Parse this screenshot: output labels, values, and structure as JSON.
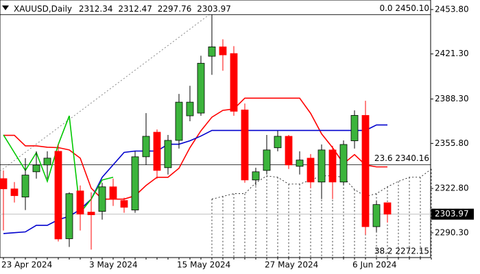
{
  "chart_data": {
    "type": "candlestick",
    "title": "XAUUSD,Daily",
    "categories": [
      "23 Apr 2024",
      null,
      null,
      null,
      null,
      null,
      null,
      null,
      "3 May 2024",
      null,
      null,
      null,
      null,
      null,
      null,
      null,
      "15 May 2024",
      null,
      null,
      null,
      null,
      null,
      null,
      null,
      "27 May 2024",
      null,
      null,
      null,
      null,
      null,
      null,
      null,
      "6 Jun 2024",
      null,
      null,
      null,
      null,
      null,
      null,
      null
    ],
    "open": [
      2330,
      2322.5,
      2316.5,
      2335,
      2340,
      2350,
      2286,
      2321,
      2305.5,
      2306,
      2324,
      2314,
      2307,
      2346,
      2364,
      2338,
      2358,
      2376,
      2378,
      2419.6,
      2426.5,
      2421.6,
      2380.3,
      2329,
      2336,
      2352.6,
      2361,
      2339,
      2345,
      2327.5,
      2351,
      2327.5,
      2357.7,
      2376.3,
      2294.8,
      2312.34,
      null,
      null,
      null,
      null
    ],
    "high": [
      2336,
      2327.5,
      2345,
      2350,
      2350,
      2355,
      2320,
      2325,
      2320,
      2327,
      2330,
      2316,
      2350,
      2378,
      2366,
      2362,
      2392,
      2398,
      2420,
      2450,
      2432,
      2427,
      2385,
      2338,
      2362,
      2365,
      2362,
      2350,
      2348,
      2355,
      2354,
      2358,
      2380,
      2387,
      2314,
      2312.47,
      null,
      null,
      null,
      null
    ],
    "low": [
      2292,
      2312.5,
      2307,
      2330,
      2330,
      2284,
      2280,
      2292,
      2278,
      2300,
      2310,
      2305,
      2305,
      2340,
      2330,
      2333,
      2352,
      2372,
      2376,
      2406,
      2409,
      2376,
      2327,
      2325,
      2333,
      2350,
      2337,
      2333,
      2323,
      2315,
      2315,
      2325,
      2352,
      2289,
      2291,
      2297.76,
      null,
      null,
      null,
      null
    ],
    "close": [
      2322.5,
      2317.5,
      2332.6,
      2340,
      2345,
      2285.8,
      2319,
      2304,
      2303.5,
      2324,
      2315,
      2309,
      2346,
      2361,
      2336,
      2358,
      2386,
      2386,
      2414.5,
      2426.5,
      2420.6,
      2379.3,
      2329,
      2335,
      2351,
      2361,
      2340,
      2343.6,
      2327.5,
      2351,
      2327.5,
      2355,
      2376.3,
      2294.8,
      2311,
      2303.97,
      null,
      null,
      null,
      null
    ],
    "up_color": "#3cb43c",
    "down_color": "#ff0000",
    "lines": [
      {
        "color": "#ff0000",
        "values": [
          2361.7,
          2361.7,
          2354,
          2354,
          2353,
          2352.7,
          2351,
          2345,
          2323,
          2315,
          2315,
          2315,
          2317.5,
          2325,
          2331,
          2331,
          2337.6,
          2352.7,
          2365,
          2375,
          2380,
          2381,
          2388.9,
          2388.9,
          2388.9,
          2388.9,
          2388.9,
          2388.9,
          2377.8,
          2362.8,
          2352.7,
          2341,
          2347.6,
          2340,
          2338.6,
          2338.6,
          null,
          null,
          null,
          null
        ]
      },
      {
        "color": "#0000cd",
        "values": [
          2289.8,
          2290.4,
          2291,
          2295.8,
          2295.8,
          2299.9,
          2302.4,
          2307.4,
          2315,
          2331,
          2340.1,
          2349.2,
          2350.2,
          2350.2,
          2350.2,
          2355.2,
          2355.2,
          2357.7,
          2361.2,
          2365.3,
          2365.3,
          2365.3,
          2365.3,
          2365.3,
          2365.3,
          2365.3,
          2365.3,
          2365.3,
          2365.3,
          2365.3,
          2365.3,
          2365.3,
          2365.3,
          2365.3,
          2369.3,
          2369.3,
          null,
          null,
          null,
          null
        ]
      },
      {
        "color": "#00c800",
        "values": [
          2362,
          2349,
          2336,
          2349,
          2328,
          2355,
          2376,
          2305,
          2315,
          2329,
          2331,
          null,
          null,
          null,
          null,
          null,
          null,
          null,
          null,
          null,
          null,
          null,
          null,
          null,
          null,
          null,
          null,
          null,
          null,
          null,
          null,
          null,
          null,
          null,
          null,
          null,
          null,
          null,
          null,
          null
        ]
      }
    ],
    "cloud": {
      "color": "#000000",
      "values": [
        null,
        null,
        null,
        null,
        null,
        null,
        null,
        null,
        null,
        null,
        null,
        null,
        null,
        null,
        null,
        null,
        null,
        null,
        null,
        2315,
        2317,
        2319,
        2319,
        2327,
        2332,
        2331,
        2326,
        2326,
        2329,
        2332,
        2332,
        2331,
        2322,
        2317,
        2319,
        2324,
        2328,
        2331,
        2331,
        2337
      ]
    },
    "fibo_color": "#000000",
    "fibo": [
      {
        "value": 2450.1,
        "label": "0.0 2450.10"
      },
      {
        "value": 2340.16,
        "label": "23.6 2340.16"
      },
      {
        "value": 2272.15,
        "label": "38.2 2272.15"
      }
    ],
    "price_line_color": "#c0c0c0",
    "ylim": [
      2272.2,
      2460.8
    ],
    "yticks": [
      {
        "value": 2453.8,
        "label": "2453.80"
      },
      {
        "value": 2421.3,
        "label": "2421.30"
      },
      {
        "value": 2388.3,
        "label": "2388.30"
      },
      {
        "value": 2355.8,
        "label": "2355.80"
      },
      {
        "value": 2322.8,
        "label": "2322.80"
      },
      {
        "value": 2290.3,
        "label": "2290.30"
      }
    ]
  }
}
